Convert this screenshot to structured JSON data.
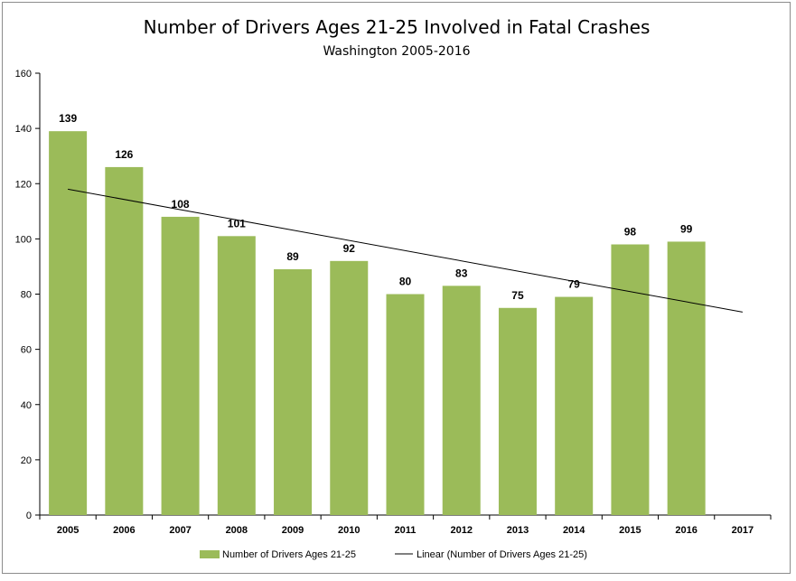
{
  "chart_data": {
    "type": "bar",
    "title": "Number of Drivers Ages 21-25 Involved in Fatal Crashes",
    "subtitle": "Washington 2005-2016",
    "categories": [
      "2005",
      "2006",
      "2007",
      "2008",
      "2009",
      "2010",
      "2011",
      "2012",
      "2013",
      "2014",
      "2015",
      "2016",
      "2017"
    ],
    "series": [
      {
        "name": "Number of Drivers Ages 21-25",
        "type": "bar",
        "color": "#9bbb59",
        "values": [
          139,
          126,
          108,
          101,
          89,
          92,
          80,
          83,
          75,
          79,
          98,
          99,
          null
        ]
      },
      {
        "name": "Linear (Number of Drivers Ages 21-25)",
        "type": "trendline",
        "color": "#000000",
        "start": {
          "x": "2005",
          "y": 118
        },
        "end": {
          "x": "2017",
          "y": 73.5
        }
      }
    ],
    "ylim": [
      0,
      160
    ],
    "yticks": [
      0,
      20,
      40,
      60,
      80,
      100,
      120,
      140,
      160
    ],
    "grid": false,
    "legend": "bottom"
  }
}
